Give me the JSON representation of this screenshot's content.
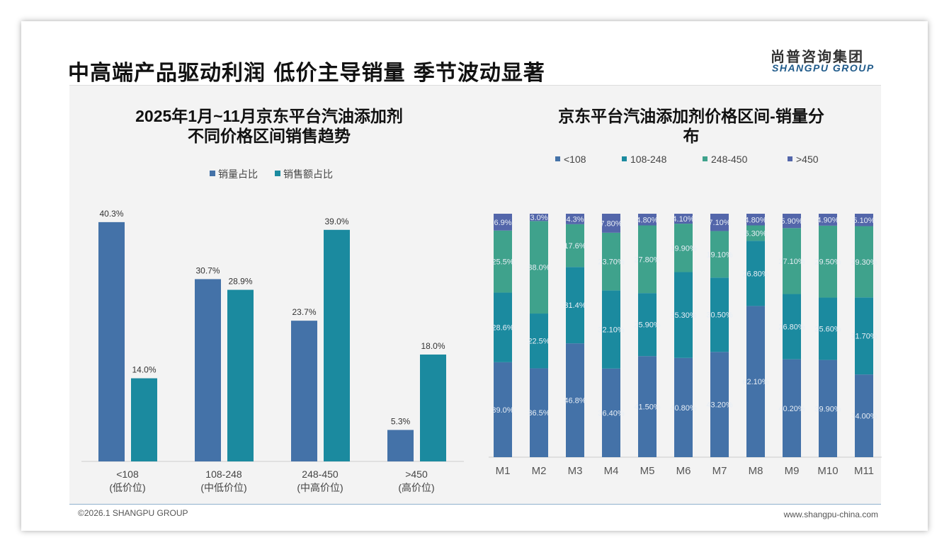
{
  "header": {
    "title": "中高端产品驱动利润 低价主导销量 季节波动显著",
    "logo_cn": "尚普咨询集团",
    "logo_en": "SHANGPU GROUP"
  },
  "footer": {
    "copyright": "©2026.1 SHANGPU GROUP",
    "website": "www.shangpu-china.com"
  },
  "chart_data": [
    {
      "type": "bar",
      "title": [
        "2025年1月~11月京东平台汽油添加剂",
        "不同价格区间销售趋势"
      ],
      "categories": [
        "<108",
        "108-248",
        "248-450",
        ">450"
      ],
      "category_sublabels": [
        "(低价位)",
        "(中低价位)",
        "(中高价位)",
        "(高价位)"
      ],
      "series": [
        {
          "name": "销量占比",
          "color": "#4472a8",
          "values": [
            40.3,
            30.7,
            23.7,
            5.3
          ]
        },
        {
          "name": "销售额占比",
          "color": "#1b8a9f",
          "values": [
            14.0,
            28.9,
            39.0,
            18.0
          ]
        }
      ],
      "unit": "%",
      "legend": "top-center"
    },
    {
      "type": "bar",
      "stacked": true,
      "title": [
        "京东平台汽油添加剂价格区间-销量分",
        "布"
      ],
      "categories": [
        "M1",
        "M2",
        "M3",
        "M4",
        "M5",
        "M6",
        "M7",
        "M8",
        "M9",
        "M10",
        "M11"
      ],
      "series": [
        {
          "name": "<108",
          "color": "#4472a8",
          "values": [
            "39.0",
            "36.5",
            "46.8",
            "36.40",
            "41.50",
            "40.80",
            "43.20",
            "62.10",
            "40.20",
            "39.90",
            "34.00"
          ]
        },
        {
          "name": "108-248",
          "color": "#1b8a9f",
          "values": [
            "28.6",
            "22.5",
            "31.4",
            "32.10",
            "25.90",
            "35.30",
            "30.50",
            "26.80",
            "26.80",
            "25.60",
            "31.70"
          ]
        },
        {
          "name": "248-450",
          "color": "#3fa28c",
          "values": [
            "25.5",
            "38.0",
            "17.6",
            "23.70",
            "27.80",
            "19.90",
            "19.10",
            "6.30",
            "27.10",
            "29.50",
            "29.30"
          ]
        },
        {
          "name": ">450",
          "color": "#5366aa",
          "values": [
            "6.9",
            "3.0",
            "4.3",
            "7.80",
            "4.80",
            "4.10",
            "7.10",
            "4.80",
            "5.90",
            "4.90",
            "5.10"
          ]
        }
      ],
      "unit": "%",
      "legend": "top-center"
    }
  ]
}
